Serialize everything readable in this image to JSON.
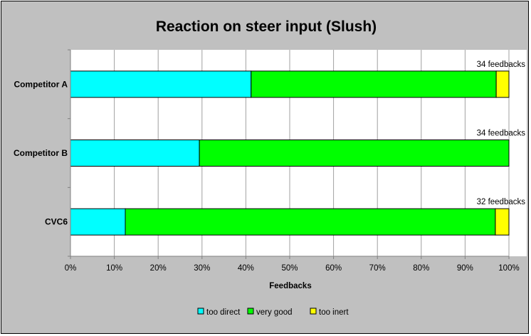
{
  "chart_data": {
    "type": "bar",
    "orientation": "horizontal",
    "stacked": "percent",
    "title": "Reaction on steer input (Slush)",
    "xlabel": "Feedbacks",
    "ylabel": "",
    "xlim": [
      0,
      100
    ],
    "x_ticks": [
      "0%",
      "10%",
      "20%",
      "30%",
      "40%",
      "50%",
      "60%",
      "70%",
      "80%",
      "90%",
      "100%"
    ],
    "categories": [
      "Competitor A",
      "Competitor B",
      "CVC6"
    ],
    "feedback_labels": [
      "34 feedbacks",
      "34 feedbacks",
      "32 feedbacks"
    ],
    "series": [
      {
        "name": "too direct",
        "color": "#00ffff",
        "values": [
          41.2,
          29.4,
          12.5
        ]
      },
      {
        "name": "very good",
        "color": "#00ff00",
        "values": [
          55.9,
          70.6,
          84.4
        ]
      },
      {
        "name": "too inert",
        "color": "#ffff00",
        "values": [
          2.9,
          0,
          3.1
        ]
      }
    ],
    "grid": "vertical",
    "legend_position": "bottom",
    "plot_background": "#ffffff",
    "chart_background": "#c0c0c0"
  }
}
